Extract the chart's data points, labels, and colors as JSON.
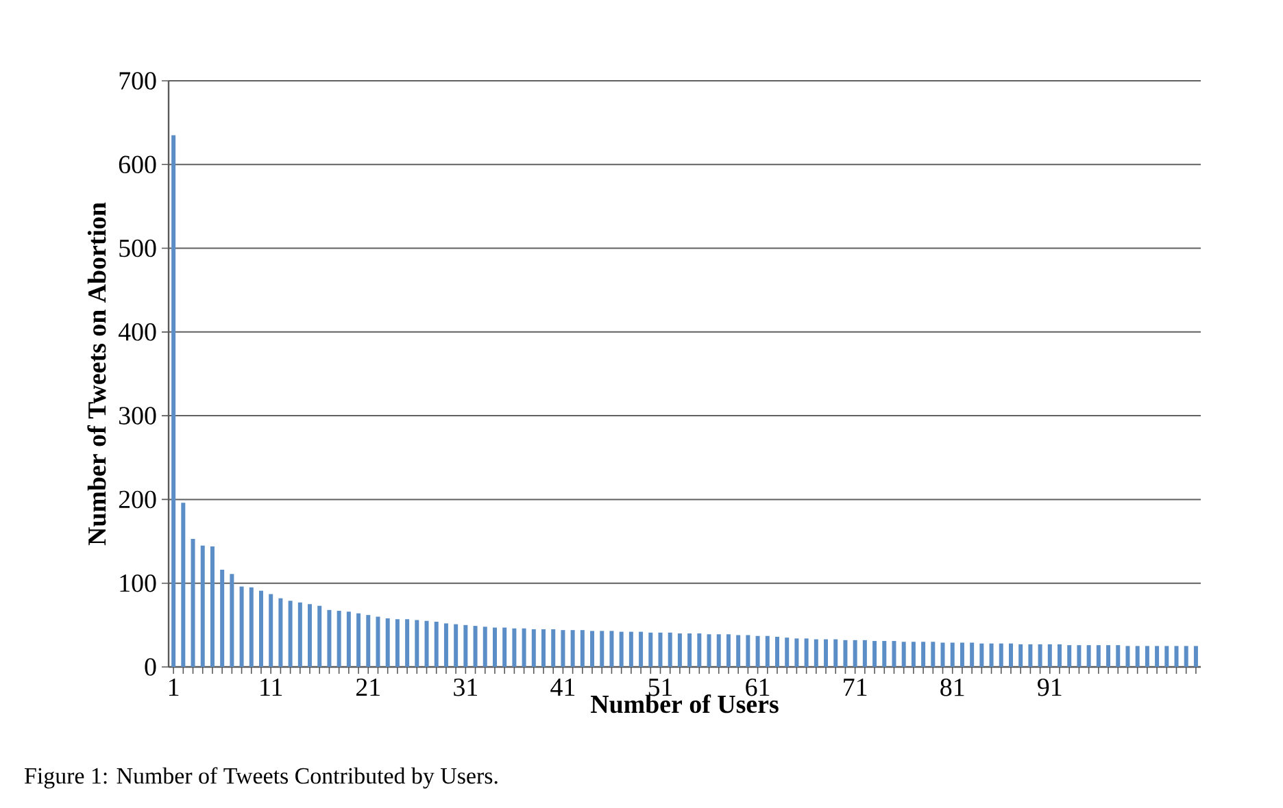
{
  "chart_data": {
    "type": "bar",
    "xlabel": "Number of Users",
    "ylabel": "Number of Tweets on Abortion",
    "annotations": [
      "Figure 1: Number of Tweets Contributed by Users."
    ],
    "categories": [
      "1",
      null,
      null,
      null,
      null,
      null,
      null,
      null,
      null,
      null,
      "11",
      null,
      null,
      null,
      null,
      null,
      null,
      null,
      null,
      null,
      "21",
      null,
      null,
      null,
      null,
      null,
      null,
      null,
      null,
      null,
      "31",
      null,
      null,
      null,
      null,
      null,
      null,
      null,
      null,
      null,
      "41",
      null,
      null,
      null,
      null,
      null,
      null,
      null,
      null,
      null,
      "51",
      null,
      null,
      null,
      null,
      null,
      null,
      null,
      null,
      null,
      "61",
      null,
      null,
      null,
      null,
      null,
      null,
      null,
      null,
      null,
      "71",
      null,
      null,
      null,
      null,
      null,
      null,
      null,
      null,
      null,
      "81",
      null,
      null,
      null,
      null,
      null,
      null,
      null,
      null,
      null,
      "91",
      null,
      null,
      null,
      null,
      null,
      null,
      null,
      null,
      null,
      null,
      null,
      null,
      null,
      null,
      null
    ],
    "values": [
      635,
      196,
      153,
      145,
      144,
      116,
      111,
      96,
      95,
      91,
      87,
      82,
      79,
      77,
      75,
      73,
      68,
      67,
      66,
      64,
      62,
      60,
      58,
      57,
      57,
      56,
      55,
      54,
      52,
      51,
      50,
      49,
      48,
      47,
      47,
      46,
      46,
      45,
      45,
      45,
      44,
      44,
      44,
      43,
      43,
      43,
      42,
      42,
      42,
      41,
      41,
      41,
      40,
      40,
      40,
      39,
      39,
      39,
      38,
      38,
      37,
      37,
      36,
      35,
      34,
      34,
      33,
      33,
      33,
      32,
      32,
      32,
      31,
      31,
      31,
      30,
      30,
      30,
      30,
      29,
      29,
      29,
      29,
      28,
      28,
      28,
      28,
      27,
      27,
      27,
      27,
      27,
      26,
      26,
      26,
      26,
      26,
      26,
      25,
      25,
      25,
      25,
      25,
      25,
      25,
      25
    ],
    "color": "#5b8ec6",
    "ylim": [
      0,
      700
    ],
    "yticks": [
      0,
      100,
      200,
      300,
      400,
      500,
      600,
      700
    ],
    "grid": "y"
  }
}
